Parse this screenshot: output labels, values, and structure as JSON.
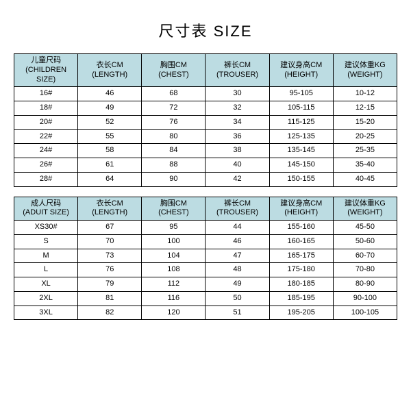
{
  "title": "尺寸表 SIZE",
  "colors": {
    "header_bg": "#bcdce2",
    "border": "#000000",
    "text": "#000000",
    "background": "#ffffff"
  },
  "typography": {
    "title_fontsize": 22,
    "cell_fontsize": 11
  },
  "children_table": {
    "type": "table",
    "columns": [
      {
        "cn": "儿童尺码",
        "en": "(CHILDREN SIZE)"
      },
      {
        "cn": "衣长CM",
        "en": "(LENGTH)"
      },
      {
        "cn": "胸围CM",
        "en": "(CHEST)"
      },
      {
        "cn": "裤长CM",
        "en": "(TROUSER)"
      },
      {
        "cn": "建议身高CM",
        "en": "(HEIGHT)"
      },
      {
        "cn": "建议体重KG",
        "en": "(WEIGHT)"
      }
    ],
    "rows": [
      [
        "16#",
        "46",
        "68",
        "30",
        "95-105",
        "10-12"
      ],
      [
        "18#",
        "49",
        "72",
        "32",
        "105-115",
        "12-15"
      ],
      [
        "20#",
        "52",
        "76",
        "34",
        "115-125",
        "15-20"
      ],
      [
        "22#",
        "55",
        "80",
        "36",
        "125-135",
        "20-25"
      ],
      [
        "24#",
        "58",
        "84",
        "38",
        "135-145",
        "25-35"
      ],
      [
        "26#",
        "61",
        "88",
        "40",
        "145-150",
        "35-40"
      ],
      [
        "28#",
        "64",
        "90",
        "42",
        "150-155",
        "40-45"
      ]
    ]
  },
  "adult_table": {
    "type": "table",
    "columns": [
      {
        "cn": "成人尺码",
        "en": "(ADUIT SIZE)"
      },
      {
        "cn": "衣长CM",
        "en": "(LENGTH)"
      },
      {
        "cn": "胸围CM",
        "en": "(CHEST)"
      },
      {
        "cn": "裤长CM",
        "en": "(TROUSER)"
      },
      {
        "cn": "建议身高CM",
        "en": "(HEIGHT)"
      },
      {
        "cn": "建议体重KG",
        "en": "(WEIGHT)"
      }
    ],
    "rows": [
      [
        "XS30#",
        "67",
        "95",
        "44",
        "155-160",
        "45-50"
      ],
      [
        "S",
        "70",
        "100",
        "46",
        "160-165",
        "50-60"
      ],
      [
        "M",
        "73",
        "104",
        "47",
        "165-175",
        "60-70"
      ],
      [
        "L",
        "76",
        "108",
        "48",
        "175-180",
        "70-80"
      ],
      [
        "XL",
        "79",
        "112",
        "49",
        "180-185",
        "80-90"
      ],
      [
        "2XL",
        "81",
        "116",
        "50",
        "185-195",
        "90-100"
      ],
      [
        "3XL",
        "82",
        "120",
        "51",
        "195-205",
        "100-105"
      ]
    ]
  }
}
